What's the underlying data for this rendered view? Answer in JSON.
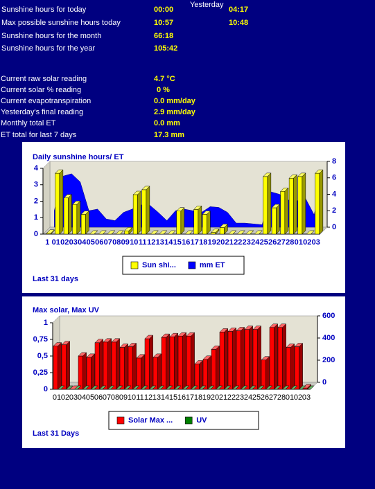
{
  "stats": {
    "yesterday_label": "Yesterday",
    "sunshine": [
      {
        "label": "Sunshine hours for today",
        "value": "00:00",
        "yesterday": "04:17"
      },
      {
        "label": "Max possible sunshine hours today",
        "value": "10:57",
        "yesterday": "10:48"
      },
      {
        "label": "Sunshine hours for the month",
        "value": "66:18"
      },
      {
        "label": "Sunshine hours for the year",
        "value": "105:42"
      }
    ],
    "readings": [
      {
        "label": "Current raw solar reading",
        "value": "4.7 °C"
      },
      {
        "label": "Current solar % reading",
        "value": "0 %"
      },
      {
        "label": "Current evapotranspiration",
        "value": "0.0 mm/day"
      },
      {
        "label": "Yesterday's final reading",
        "value": "2.9 mm/day"
      },
      {
        "label": "Monthly total ET",
        "value": "0.0 mm"
      },
      {
        "label": "ET total for last 7 days",
        "value": "17.3 mm"
      }
    ]
  },
  "chart_data": [
    {
      "type": "bar",
      "title": "Daily sunshine hours/ ET",
      "footer": "Last 31 days",
      "categories": [
        "1",
        "01",
        "02",
        "03",
        "04",
        "05",
        "06",
        "07",
        "08",
        "09",
        "10",
        "11",
        "12",
        "13",
        "14",
        "15",
        "16",
        "17",
        "18",
        "19",
        "20",
        "21",
        "22",
        "23",
        "24",
        "25",
        "26",
        "27",
        "28",
        "01",
        "02",
        "03"
      ],
      "series": [
        {
          "name": "Sun shi...",
          "type": "bar",
          "color": "#ffff00",
          "values": [
            0.05,
            3.7,
            2.2,
            1.8,
            1.2,
            0,
            0,
            0,
            0,
            0.2,
            2.4,
            2.7,
            0,
            0,
            0,
            1.4,
            0,
            1.5,
            1.2,
            0.1,
            0.4,
            0,
            0,
            0,
            0,
            3.5,
            1.6,
            2.6,
            3.4,
            3.5,
            0,
            3.7
          ]
        },
        {
          "name": "mm ET",
          "type": "area",
          "axis": "y2",
          "color": "#0000ff",
          "values": [
            2,
            6.2,
            6.5,
            5.5,
            2,
            2.2,
            1,
            0.8,
            1.8,
            2.2,
            2.7,
            2.7,
            1.8,
            0.8,
            2,
            2.2,
            2,
            1.8,
            2.5,
            2.4,
            1.8,
            0.5,
            0.5,
            0.4,
            0.3,
            4.3,
            4,
            3.3,
            3.2,
            3.5,
            1.5,
            6.5
          ]
        }
      ],
      "ylim": [
        0,
        4
      ],
      "yticks": [
        0,
        1,
        2,
        3,
        4
      ],
      "y2lim": [
        0,
        8
      ],
      "y2ticks": [
        0,
        2,
        4,
        6,
        8
      ]
    },
    {
      "type": "bar",
      "title": "Max solar, Max UV",
      "footer": "Last 31 Days",
      "categories": [
        "01",
        "02",
        "03",
        "04",
        "05",
        "06",
        "07",
        "08",
        "09",
        "10",
        "11",
        "12",
        "13",
        "14",
        "15",
        "16",
        "17",
        "18",
        "19",
        "20",
        "21",
        "22",
        "23",
        "24",
        "25",
        "26",
        "27",
        "28",
        "01",
        "02",
        "03"
      ],
      "series": [
        {
          "name": "Solar Max ...",
          "type": "bar",
          "axis": "y2",
          "color": "#ff0000",
          "values": [
            390,
            402,
            0,
            300,
            288,
            420,
            426,
            426,
            378,
            384,
            282,
            456,
            288,
            468,
            474,
            480,
            480,
            228,
            270,
            360,
            516,
            522,
            528,
            540,
            540,
            264,
            558,
            558,
            378,
            384,
            12
          ]
        },
        {
          "name": "UV",
          "type": "bar",
          "color": "#008000",
          "values": [
            0,
            0,
            0,
            0,
            0,
            0,
            0,
            0,
            0,
            0,
            0,
            0,
            0,
            0,
            0,
            0,
            0,
            0,
            0,
            0,
            0,
            0,
            0,
            0,
            0,
            0,
            0,
            0,
            0,
            0,
            0
          ]
        }
      ],
      "ylim": [
        0,
        1
      ],
      "yticks": [
        0,
        {
          "value": 0.25,
          "label": "0,25"
        },
        {
          "value": 0.5,
          "label": "0,5"
        },
        {
          "value": 0.75,
          "label": "0,75"
        },
        1
      ],
      "y2lim": [
        0,
        600
      ],
      "y2ticks": [
        0,
        200,
        400,
        600
      ]
    }
  ]
}
